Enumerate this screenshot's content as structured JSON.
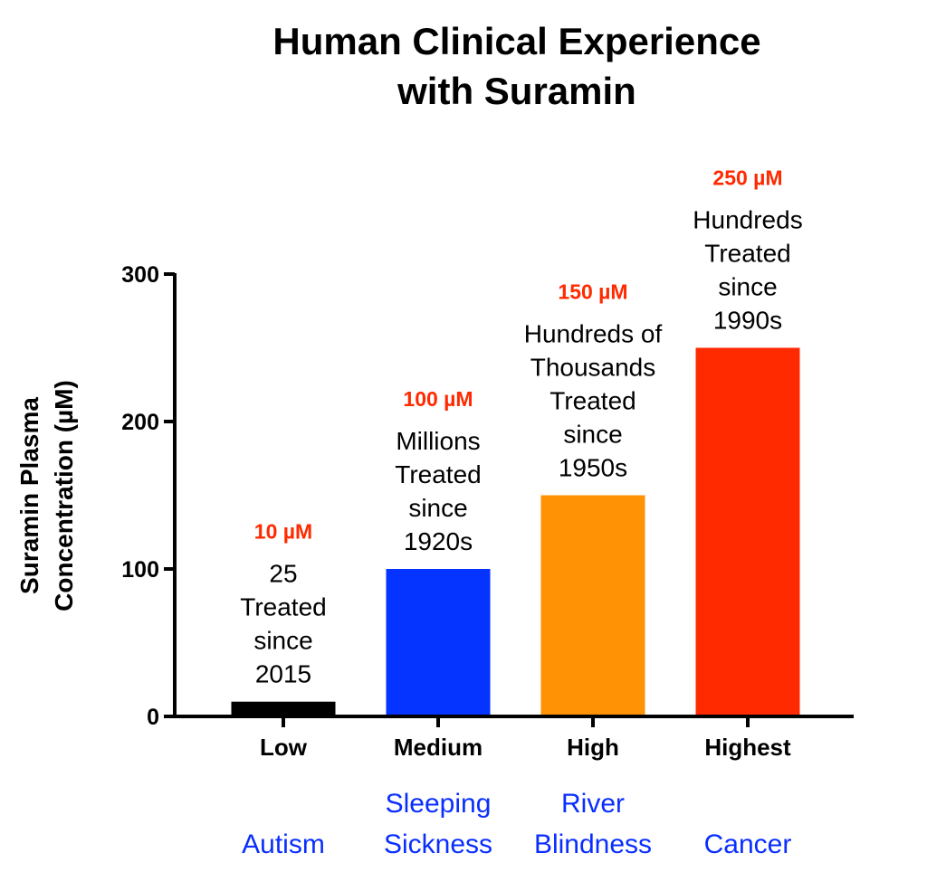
{
  "chart_data": {
    "type": "bar",
    "title": [
      "Human Clinical Experience",
      "with Suramin"
    ],
    "ylabel": [
      "Suramin Plasma",
      "Concentration (µM)"
    ],
    "xlabel": "",
    "ylim": [
      0,
      300
    ],
    "yticks": [
      0,
      100,
      200,
      300
    ],
    "grid": false,
    "categories": [
      "Low",
      "Medium",
      "High",
      "Highest"
    ],
    "values": [
      10,
      100,
      150,
      250
    ],
    "colors": [
      "#000000",
      "#0533FF",
      "#FF9305",
      "#FF2A00"
    ],
    "value_labels": [
      "10 µM",
      "100 µM",
      "150 µM",
      "250 µM"
    ],
    "value_label_color": "#FF2A00",
    "annotations": [
      [
        "25",
        "Treated",
        "since",
        "2015"
      ],
      [
        "Millions",
        "Treated",
        "since",
        "1920s"
      ],
      [
        "Hundreds of",
        "Thousands",
        "Treated",
        "since",
        "1950s"
      ],
      [
        "Hundreds",
        "Treated",
        "since",
        "1990s"
      ]
    ],
    "diseases": [
      [
        "Autism"
      ],
      [
        "Sleeping",
        "Sickness"
      ],
      [
        "River",
        "Blindness"
      ],
      [
        "Cancer"
      ]
    ],
    "disease_color": "#0A2EFF"
  }
}
